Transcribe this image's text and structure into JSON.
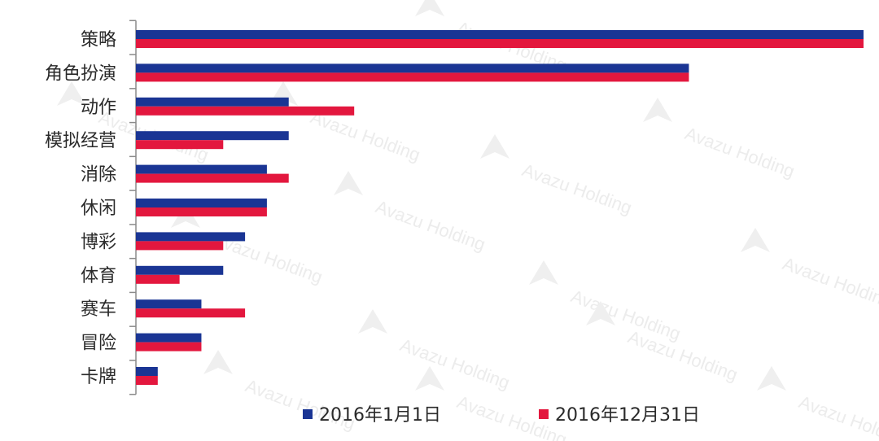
{
  "chart_data": {
    "type": "bar",
    "orientation": "horizontal",
    "categories": [
      "策略",
      "角色扮演",
      "动作",
      "模拟经营",
      "消除",
      "休闲",
      "博彩",
      "体育",
      "赛车",
      "冒险",
      "卡牌"
    ],
    "series": [
      {
        "name": "2016年1月1日",
        "color": "#1a3594",
        "values": [
          100,
          76,
          21,
          21,
          18,
          18,
          15,
          12,
          9,
          9,
          3
        ]
      },
      {
        "name": "2016年12月31日",
        "color": "#e3173e",
        "values": [
          100,
          76,
          30,
          12,
          21,
          18,
          12,
          6,
          15,
          9,
          3
        ]
      }
    ],
    "xlim": [
      0,
      100
    ],
    "grid": false,
    "legend_position": "bottom"
  },
  "watermark": {
    "text": "Avazu Holding",
    "color": "#ececec"
  }
}
